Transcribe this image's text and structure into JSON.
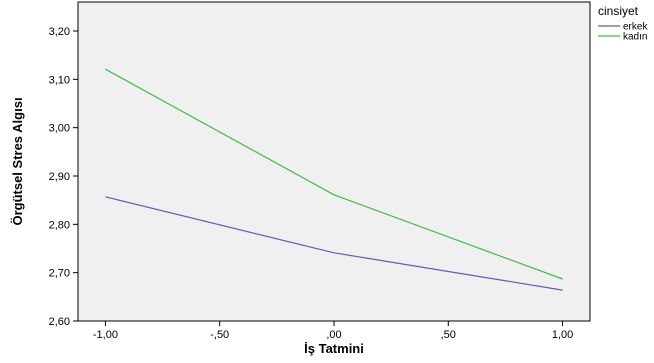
{
  "chart_data": {
    "type": "line",
    "title": "",
    "xlabel": "İş Tatmini",
    "ylabel": "Örgütsel Stres Algısı",
    "x": [
      -1,
      0,
      1
    ],
    "x_tick_values": [
      -1,
      -0.5,
      0,
      0.5,
      1
    ],
    "x_tick_labels": [
      "-1,00",
      "-,50",
      ",00",
      ",50",
      "1,00"
    ],
    "xlim": [
      -1.12,
      1.12
    ],
    "y_tick_values": [
      2.6,
      2.7,
      2.8,
      2.9,
      3.0,
      3.1,
      3.2
    ],
    "y_tick_labels": [
      "2,60",
      "2,70",
      "2,80",
      "2,90",
      "3,00",
      "3,10",
      "3,20"
    ],
    "ylim": [
      2.6,
      3.26
    ],
    "grid": false,
    "legend_title": "cinsiyet",
    "legend_position": "top-right",
    "series": [
      {
        "name": "erkek",
        "color": "#5a5fb5",
        "values": [
          2.857,
          2.741,
          2.664
        ]
      },
      {
        "name": "kadın",
        "color": "#44bb44",
        "values": [
          3.121,
          2.861,
          2.687
        ]
      }
    ],
    "plot_background": "#f0f0f0"
  }
}
